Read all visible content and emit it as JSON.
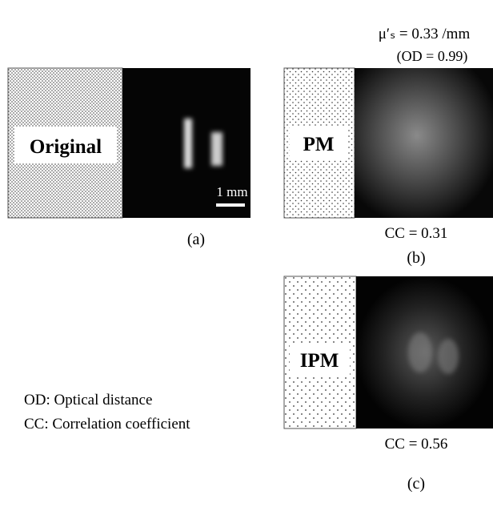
{
  "header": {
    "scattering": "μ′ₛ = 0.33 /mm",
    "od": "(OD = 0.99)"
  },
  "panel_a": {
    "label": "Original",
    "scale_bar": "1 mm",
    "caption": "(a)"
  },
  "panel_b": {
    "label": "PM",
    "cc": "CC = 0.31",
    "caption": "(b)"
  },
  "panel_c": {
    "label": "IPM",
    "cc": "CC = 0.56",
    "caption": "(c)"
  },
  "legend": [
    "OD: Optical distance",
    "CC: Correlation coefficient"
  ]
}
